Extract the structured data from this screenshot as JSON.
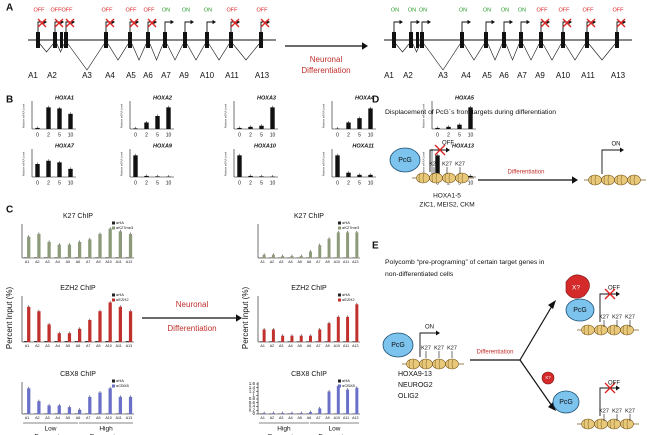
{
  "chart_data": [
    {
      "type": "bar",
      "panel": "B",
      "title": "HOXA1",
      "y_label": "Relative mRNA Level",
      "categories": [
        "0",
        "2",
        "5",
        "10"
      ],
      "values": [
        0.05,
        1.0,
        0.95,
        0.7
      ],
      "ylim": [
        0,
        1.2
      ],
      "color": "#111111"
    },
    {
      "type": "bar",
      "panel": "B",
      "title": "HOXA2",
      "y_label": "Relative mRNA Level",
      "categories": [
        "0",
        "2",
        "5",
        "10"
      ],
      "values": [
        0.03,
        0.3,
        0.6,
        1.0
      ],
      "ylim": [
        0,
        1.2
      ],
      "color": "#111111"
    },
    {
      "type": "bar",
      "panel": "B",
      "title": "HOXA3",
      "y_label": "Relative mRNA Level",
      "categories": [
        "0",
        "2",
        "5",
        "10"
      ],
      "values": [
        0.05,
        0.1,
        0.15,
        1.0
      ],
      "ylim": [
        0,
        1.2
      ],
      "color": "#111111"
    },
    {
      "type": "bar",
      "panel": "B",
      "title": "HOXA4",
      "y_label": "Relative mRNA Level",
      "categories": [
        "0",
        "2",
        "5",
        "10"
      ],
      "values": [
        0.02,
        0.3,
        0.5,
        0.95
      ],
      "ylim": [
        0,
        1.2
      ],
      "color": "#111111"
    },
    {
      "type": "bar",
      "panel": "B",
      "title": "HOXA5",
      "y_label": "Relative mRNA Level",
      "categories": [
        "0",
        "2",
        "5",
        "10"
      ],
      "values": [
        0.05,
        0.1,
        0.2,
        1.0
      ],
      "ylim": [
        0,
        1.2
      ],
      "color": "#111111"
    },
    {
      "type": "bar",
      "panel": "B",
      "title": "HOXA7",
      "y_label": "Relative mRNA Level",
      "categories": [
        "0",
        "2",
        "5",
        "10"
      ],
      "values": [
        0.8,
        1.0,
        0.9,
        0.5
      ],
      "ylim": [
        0,
        1.6
      ],
      "color": "#111111"
    },
    {
      "type": "bar",
      "panel": "B",
      "title": "HOXA9",
      "y_label": "Relative mRNA Level",
      "categories": [
        "0",
        "2",
        "5",
        "10"
      ],
      "values": [
        1.0,
        0.05,
        0.03,
        0.02
      ],
      "ylim": [
        0,
        1.2
      ],
      "color": "#111111"
    },
    {
      "type": "bar",
      "panel": "B",
      "title": "HOXA10",
      "y_label": "Relative mRNA Level",
      "categories": [
        "0",
        "2",
        "5",
        "10"
      ],
      "values": [
        1.0,
        0.05,
        0.03,
        0.02
      ],
      "ylim": [
        0,
        1.2
      ],
      "color": "#111111"
    },
    {
      "type": "bar",
      "panel": "B",
      "title": "HOXA11",
      "y_label": "Relative mRNA Level",
      "categories": [
        "0",
        "2",
        "5",
        "10"
      ],
      "values": [
        1.0,
        0.2,
        0.1,
        0.1
      ],
      "ylim": [
        0,
        1.2
      ],
      "color": "#111111"
    },
    {
      "type": "bar",
      "panel": "B",
      "title": "HOXA13",
      "y_label": "Relative mRNA Level",
      "categories": [
        "0",
        "2",
        "5",
        "10"
      ],
      "values": [
        1.0,
        0.1,
        0.05,
        0.05
      ],
      "ylim": [
        0,
        1.2
      ],
      "color": "#111111"
    },
    {
      "type": "grouped_bar",
      "panel": "C",
      "side": "before",
      "title": "K27 ChIP",
      "categories": [
        "A1",
        "A2",
        "A3",
        "A4",
        "A5",
        "A6",
        "A7",
        "A9",
        "A10",
        "A11",
        "A13"
      ],
      "ylim": [
        0,
        6
      ],
      "series": [
        {
          "name": "αHA",
          "color": "#222222",
          "values": [
            0.1,
            0.1,
            0.1,
            0.1,
            0.1,
            0.1,
            0.1,
            0.1,
            0.1,
            0.1,
            0.1
          ]
        },
        {
          "name": "αK27me3",
          "color": "#8c9a7a",
          "values": [
            4,
            4.5,
            3,
            2.5,
            2.5,
            3,
            3.5,
            4.5,
            5.5,
            5,
            4.5
          ]
        }
      ]
    },
    {
      "type": "grouped_bar",
      "panel": "C",
      "side": "before",
      "title": "EZH2 ChIP",
      "categories": [
        "A1",
        "A2",
        "A3",
        "A4",
        "A5",
        "A6",
        "A7",
        "A9",
        "A10",
        "A11",
        "A13"
      ],
      "ylim": [
        0,
        5
      ],
      "series": [
        {
          "name": "αHA",
          "color": "#222222",
          "values": [
            0.1,
            0.1,
            0.1,
            0.1,
            0.1,
            0.1,
            0.1,
            0.1,
            0.1,
            0.1,
            0.1
          ]
        },
        {
          "name": "αEZH2",
          "color": "#c0302c",
          "values": [
            4,
            3.5,
            2,
            1,
            1,
            1.5,
            2.5,
            3.5,
            4.5,
            4,
            3.5
          ]
        }
      ]
    },
    {
      "type": "grouped_bar",
      "panel": "C",
      "side": "before",
      "title": "CBX8 ChIP",
      "categories": [
        "A1",
        "A2",
        "A3",
        "A4",
        "A5",
        "A6",
        "A7",
        "A9",
        "A10",
        "A11",
        "A13"
      ],
      "ylim": [
        0,
        3.5
      ],
      "series": [
        {
          "name": "αHA",
          "color": "#222222",
          "values": [
            0.05,
            0.05,
            0.05,
            0.05,
            0.05,
            0.05,
            0.05,
            0.05,
            0.05,
            0.05,
            0.05
          ]
        },
        {
          "name": "αCBX8",
          "color": "#6a6fc8",
          "values": [
            3,
            1.5,
            1,
            1,
            0.8,
            0.5,
            2,
            2.5,
            3,
            2,
            2
          ]
        }
      ],
      "groups": [
        {
          "lines": [
            "Low",
            "Expression"
          ]
        },
        {
          "lines": [
            "High",
            "Expression"
          ]
        }
      ]
    },
    {
      "type": "grouped_bar",
      "panel": "C",
      "side": "after",
      "title": "K27 ChIP",
      "categories": [
        "A1",
        "A2",
        "A3",
        "A4",
        "A5",
        "A6",
        "A7",
        "A9",
        "A10",
        "A11",
        "A13"
      ],
      "ylim": [
        0,
        5
      ],
      "series": [
        {
          "name": "αHA",
          "color": "#222222",
          "values": [
            0.05,
            0.05,
            0.05,
            0.05,
            0.05,
            0.05,
            0.05,
            0.05,
            0.05,
            0.05,
            0.05
          ]
        },
        {
          "name": "αK27me3",
          "color": "#8c9a7a",
          "values": [
            0.5,
            0.5,
            0.3,
            0.3,
            0.3,
            1,
            2,
            3,
            4,
            4,
            4
          ]
        }
      ]
    },
    {
      "type": "grouped_bar",
      "panel": "C",
      "side": "after",
      "title": "EZH2 ChIP",
      "categories": [
        "A1",
        "A2",
        "A3",
        "A4",
        "A5",
        "A6",
        "A7",
        "A9",
        "A10",
        "A11",
        "A13"
      ],
      "ylim": [
        0,
        3.5
      ],
      "series": [
        {
          "name": "αHA",
          "color": "#222222",
          "values": [
            0.05,
            0.05,
            0.05,
            0.05,
            0.05,
            0.05,
            0.05,
            0.05,
            0.05,
            0.05,
            0.05
          ]
        },
        {
          "name": "αEZH2",
          "color": "#c0302c",
          "values": [
            1,
            1,
            0.5,
            0.5,
            0.5,
            0.5,
            1,
            1.5,
            2,
            2,
            3
          ]
        }
      ]
    },
    {
      "type": "grouped_bar",
      "panel": "C",
      "side": "after",
      "title": "CBX8 ChIP",
      "categories": [
        "A1",
        "A2",
        "A3",
        "A4",
        "A5",
        "A6",
        "A7",
        "A9",
        "A10",
        "A11",
        "A13"
      ],
      "ylim": [
        0,
        1.6
      ],
      "yticks": [
        0,
        0.2,
        0.4,
        0.6,
        0.8,
        1,
        1.2,
        1.4,
        1.6
      ],
      "series": [
        {
          "name": "αHA",
          "color": "#222222",
          "values": [
            0.02,
            0.02,
            0.02,
            0.02,
            0.02,
            0.02,
            0.02,
            0.02,
            0.02,
            0.02,
            0.02
          ]
        },
        {
          "name": "αCBX8",
          "color": "#6a6fc8",
          "values": [
            0.05,
            0.05,
            0.05,
            0.05,
            0.05,
            0.1,
            0.3,
            1.2,
            1.5,
            1.3,
            1.4
          ]
        }
      ],
      "groups": [
        {
          "lines": [
            "High",
            "Expression"
          ]
        },
        {
          "lines": [
            "Low",
            "Expression"
          ]
        }
      ]
    }
  ],
  "panel_a": {
    "label": "A",
    "genes": [
      "A1",
      "A2",
      "A3",
      "A4",
      "A5",
      "A6",
      "A7",
      "A9",
      "A10",
      "A11",
      "A13"
    ],
    "before_status": [
      "OFF",
      "OFF",
      "OFF",
      "OFF",
      "OFF",
      "OFF",
      "ON",
      "ON",
      "ON",
      "OFF",
      "OFF"
    ],
    "after_status": [
      "ON",
      "ON",
      "ON",
      "ON",
      "ON",
      "ON",
      "ON",
      "OFF",
      "OFF",
      "OFF",
      "OFF"
    ],
    "arrow_label": [
      "Neuronal",
      "Differentiation"
    ]
  },
  "panel_b": {
    "label": "B"
  },
  "panel_c": {
    "label": "C",
    "y_label": "Percent Input (%)",
    "arrow_label": [
      "Neuronal",
      "Differentiation"
    ]
  },
  "panel_d": {
    "label": "D",
    "title": "Displacement of PcG´s from targets during differentiation",
    "pcg": "PcG",
    "off": "OFF",
    "marks": [
      "K27",
      "K27",
      "K27"
    ],
    "arrow_label": "Differentiation",
    "on": "ON",
    "genes": [
      "HOXA1-5",
      "ZIC1, MEIS2, CKM"
    ]
  },
  "panel_e": {
    "label": "E",
    "title": [
      "Polycomb “pre-programing” of certain target genes in",
      "non-differentiated cells"
    ],
    "pcg": "PcG",
    "on": "ON",
    "marks": [
      "K27",
      "K27",
      "K27"
    ],
    "arrow_label": "Differentiation",
    "genes": [
      "HOXA9-13",
      "NEUROG2",
      "OLIG2"
    ],
    "top": {
      "factor": "X?",
      "pcg": "PcG",
      "off": "OFF",
      "marks": [
        "K27",
        "K27",
        "K27"
      ]
    },
    "bottom": {
      "factor": "X?",
      "pcg": "PcG",
      "off": "OFF",
      "marks": [
        "K27",
        "K27",
        "K27"
      ]
    }
  }
}
